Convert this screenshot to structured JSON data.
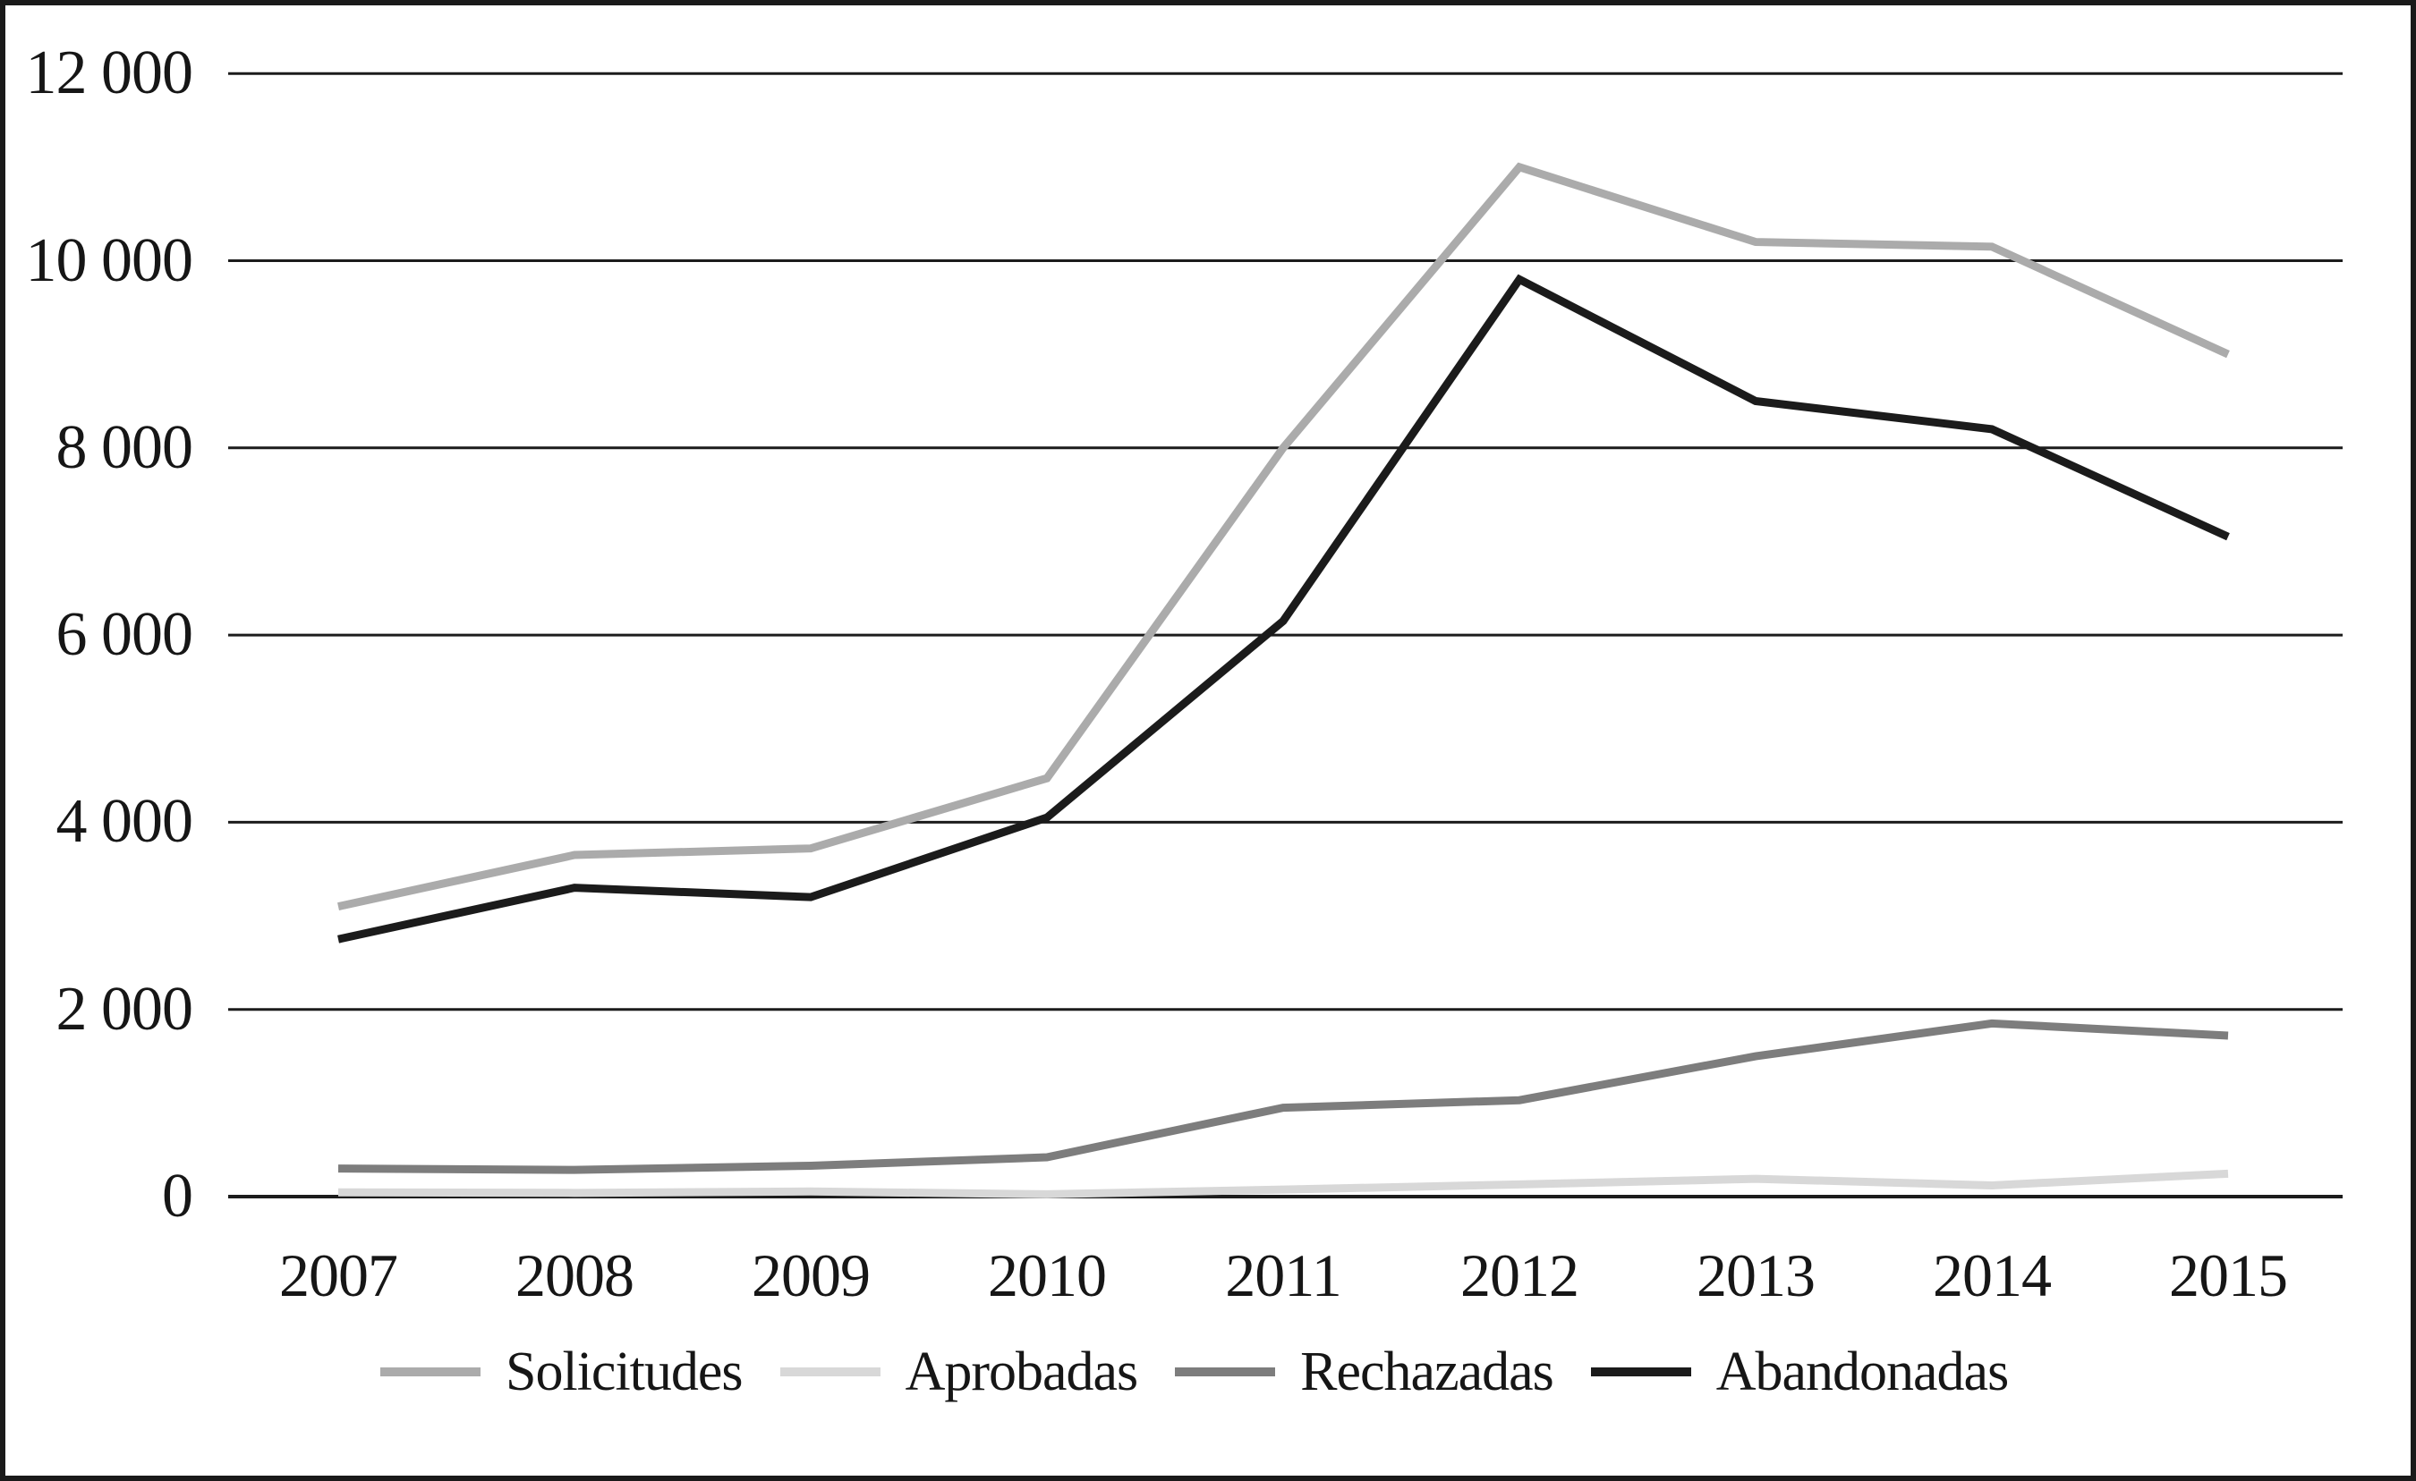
{
  "figure": {
    "background_color": "#ffffff",
    "frame_color": "#1a1a1a",
    "gridline_color": "#1c1c1c",
    "text_color": "#161616"
  },
  "chart_data": {
    "type": "line",
    "title": "",
    "xlabel": "",
    "ylabel": "",
    "categories": [
      "2007",
      "2008",
      "2009",
      "2010",
      "2011",
      "2012",
      "2013",
      "2014",
      "2015"
    ],
    "y_axis": {
      "min": 0,
      "max": 12000,
      "step": 2000,
      "tick_labels": [
        "0",
        "2 000",
        "4 000",
        "6 000",
        "8 000",
        "10 000",
        "12 000"
      ]
    },
    "grid": "horizontal",
    "legend_position": "bottom",
    "series": [
      {
        "name": "Solicitudes",
        "color": "#ababab",
        "values": [
          3100,
          3650,
          3720,
          4470,
          8000,
          11000,
          10200,
          10150,
          9000
        ]
      },
      {
        "name": "Aprobadas",
        "color": "#d8d8d8",
        "values": [
          45,
          40,
          55,
          25,
          75,
          130,
          190,
          120,
          245
        ]
      },
      {
        "name": "Rechazadas",
        "color": "#7d7d7d",
        "values": [
          300,
          285,
          330,
          420,
          950,
          1030,
          1500,
          1850,
          1720
        ]
      },
      {
        "name": "Abandonadas",
        "color": "#1b1b1b",
        "values": [
          2750,
          3300,
          3200,
          4050,
          6150,
          9800,
          8500,
          8200,
          7050
        ]
      }
    ]
  }
}
